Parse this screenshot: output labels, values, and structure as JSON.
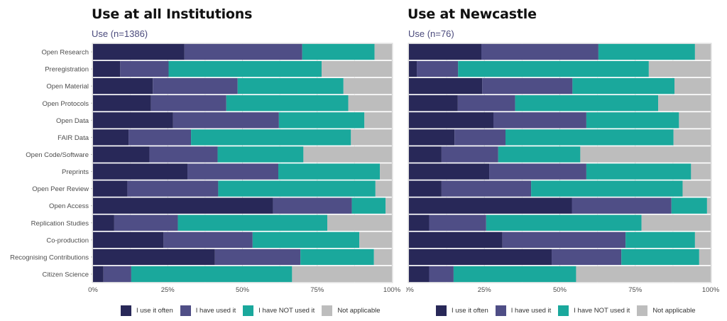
{
  "chart_data": [
    {
      "type": "bar",
      "orientation": "horizontal",
      "stacked": true,
      "title": "Use at all Institutions",
      "subtitle": "Use (n=1386)",
      "xlabel": "",
      "ylabel": "",
      "xlim": [
        0,
        100
      ],
      "x_ticks": [
        "0%",
        "25%",
        "50%",
        "75%",
        "100%"
      ],
      "grid": true,
      "legend_position": "bottom",
      "categories": [
        "Open Research",
        "Preregistration",
        "Open Material",
        "Open Protocols",
        "Open Data",
        "FAIR Data",
        "Open Code/Software",
        "Preprints",
        "Open Peer Review",
        "Open Access",
        "Replication Studies",
        "Co-production",
        "Recognising Contributions",
        "Citizen Science"
      ],
      "series": [
        {
          "name": "I use it often",
          "color": "#282858",
          "values": [
            30.6,
            9.1,
            20.0,
            19.4,
            26.8,
            11.9,
            18.9,
            31.6,
            11.5,
            60.2,
            7.1,
            23.6,
            40.8,
            3.5
          ]
        },
        {
          "name": "I have used it",
          "color": "#4f4e86",
          "values": [
            39.4,
            16.2,
            28.4,
            25.2,
            35.4,
            20.9,
            22.8,
            30.4,
            30.4,
            26.4,
            21.3,
            29.8,
            28.6,
            9.3
          ]
        },
        {
          "name": "I have NOT used it",
          "color": "#1aa89c",
          "values": [
            24.2,
            51.2,
            35.4,
            40.8,
            28.6,
            53.5,
            28.7,
            34.0,
            52.6,
            11.3,
            50.0,
            35.7,
            24.6,
            53.8
          ]
        },
        {
          "name": "Not applicable",
          "color": "#bdbdbd",
          "values": [
            5.8,
            23.5,
            16.2,
            14.6,
            9.2,
            13.7,
            29.6,
            4.0,
            5.5,
            2.1,
            21.6,
            10.9,
            6.0,
            33.4
          ]
        }
      ],
      "show_y_labels": true
    },
    {
      "type": "bar",
      "orientation": "horizontal",
      "stacked": true,
      "title": "Use at Newcastle",
      "subtitle": "Use (n=76)",
      "xlabel": "",
      "ylabel": "",
      "xlim": [
        0,
        100
      ],
      "x_ticks": [
        "0%",
        "25%",
        "50%",
        "75%",
        "100%"
      ],
      "grid": true,
      "legend_position": "bottom",
      "categories": [
        "Open Research",
        "Preregistration",
        "Open Material",
        "Open Protocols",
        "Open Data",
        "FAIR Data",
        "Open Code/Software",
        "Preprints",
        "Open Peer Review",
        "Open Access",
        "Replication Studies",
        "Co-production",
        "Recognising Contributions",
        "Citizen Science"
      ],
      "series": [
        {
          "name": "I use it often",
          "color": "#282858",
          "values": [
            24.0,
            2.6,
            24.3,
            16.2,
            28.0,
            15.1,
            10.8,
            26.6,
            10.8,
            54.0,
            6.7,
            31.0,
            47.3,
            6.7
          ]
        },
        {
          "name": "I have used it",
          "color": "#4f4e86",
          "values": [
            38.8,
            13.7,
            29.9,
            19.0,
            30.8,
            16.9,
            18.8,
            32.2,
            29.7,
            33.0,
            18.9,
            40.8,
            23.1,
            8.1
          ]
        },
        {
          "name": "I have NOT used it",
          "color": "#1aa89c",
          "values": [
            32.0,
            63.2,
            33.8,
            47.4,
            30.7,
            55.7,
            27.2,
            34.7,
            50.2,
            11.8,
            51.5,
            23.0,
            25.8,
            40.6
          ]
        },
        {
          "name": "Not applicable",
          "color": "#bdbdbd",
          "values": [
            5.2,
            20.5,
            12.0,
            17.4,
            10.5,
            12.3,
            43.2,
            6.5,
            9.3,
            1.2,
            22.9,
            5.2,
            3.8,
            44.6
          ]
        }
      ],
      "show_y_labels": false
    }
  ],
  "legend": {
    "items": [
      {
        "label": "I use it often",
        "color": "#282858"
      },
      {
        "label": "I have used it",
        "color": "#4f4e86"
      },
      {
        "label": "I have NOT used it",
        "color": "#1aa89c"
      },
      {
        "label": "Not applicable",
        "color": "#bdbdbd"
      }
    ]
  }
}
